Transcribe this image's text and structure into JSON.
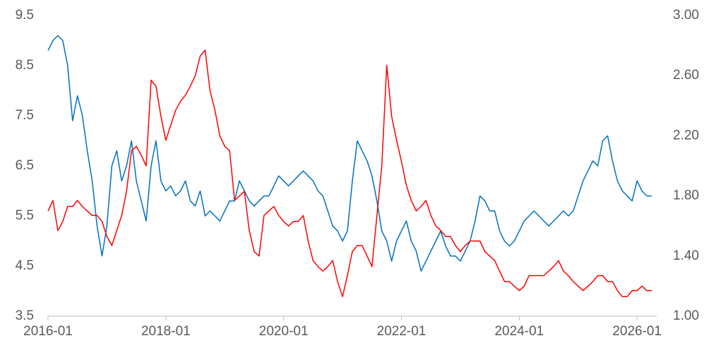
{
  "chart_data": {
    "type": "line",
    "x": [
      "2016-01",
      "2016-02",
      "2016-03",
      "2016-04",
      "2016-05",
      "2016-06",
      "2016-07",
      "2016-08",
      "2016-09",
      "2016-10",
      "2016-11",
      "2016-12",
      "2017-01",
      "2017-02",
      "2017-03",
      "2017-04",
      "2017-05",
      "2017-06",
      "2017-07",
      "2017-08",
      "2017-09",
      "2017-10",
      "2017-11",
      "2017-12",
      "2018-01",
      "2018-02",
      "2018-03",
      "2018-04",
      "2018-05",
      "2018-06",
      "2018-07",
      "2018-08",
      "2018-09",
      "2018-10",
      "2018-11",
      "2018-12",
      "2019-01",
      "2019-02",
      "2019-03",
      "2019-04",
      "2019-05",
      "2019-06",
      "2019-07",
      "2019-08",
      "2019-09",
      "2019-10",
      "2019-11",
      "2019-12",
      "2020-01",
      "2020-02",
      "2020-03",
      "2020-04",
      "2020-05",
      "2020-06",
      "2020-07",
      "2020-08",
      "2020-09",
      "2020-10",
      "2020-11",
      "2020-12",
      "2021-01",
      "2021-02",
      "2021-03",
      "2021-04",
      "2021-05",
      "2021-06",
      "2021-07",
      "2021-08",
      "2021-09",
      "2021-10",
      "2021-11",
      "2021-12",
      "2022-01",
      "2022-02",
      "2022-03",
      "2022-04",
      "2022-05",
      "2022-06",
      "2022-07",
      "2022-08",
      "2022-09",
      "2022-10",
      "2022-11",
      "2022-12",
      "2023-01",
      "2023-02",
      "2023-03",
      "2023-04",
      "2023-05",
      "2023-06",
      "2023-07",
      "2023-08",
      "2023-09",
      "2023-10",
      "2023-11",
      "2023-12",
      "2024-01",
      "2024-02",
      "2024-03",
      "2024-04",
      "2024-05",
      "2024-06",
      "2024-07",
      "2024-08",
      "2024-09",
      "2024-10",
      "2024-11",
      "2024-12",
      "2025-01",
      "2025-02",
      "2025-03",
      "2025-04",
      "2025-05",
      "2025-06",
      "2025-07",
      "2025-08",
      "2025-09",
      "2025-10",
      "2025-11",
      "2025-12",
      "2026-01",
      "2026-02",
      "2026-03",
      "2026-04"
    ],
    "series": [
      {
        "color": "#0070c0",
        "values": [
          8.8,
          9.0,
          9.1,
          9.0,
          8.5,
          7.4,
          7.9,
          7.5,
          6.8,
          6.2,
          5.3,
          4.7,
          5.3,
          6.5,
          6.8,
          6.2,
          6.5,
          7.0,
          6.2,
          5.8,
          5.4,
          6.5,
          7.0,
          6.2,
          6.0,
          6.1,
          5.9,
          6.0,
          6.2,
          5.8,
          5.7,
          6.0,
          5.5,
          5.6,
          5.5,
          5.4,
          5.6,
          5.8,
          5.8,
          6.2,
          6.0,
          5.8,
          5.7,
          5.8,
          5.9,
          5.9,
          6.1,
          6.3,
          6.2,
          6.1,
          6.2,
          6.3,
          6.4,
          6.3,
          6.2,
          6.0,
          5.9,
          5.6,
          5.3,
          5.2,
          5.0,
          5.2,
          6.2,
          7.0,
          6.8,
          6.6,
          6.3,
          5.8,
          5.2,
          5.0,
          4.6,
          5.0,
          5.2,
          5.4,
          5.0,
          4.8,
          4.4,
          4.6,
          4.8,
          5.0,
          5.2,
          4.9,
          4.7,
          4.7,
          4.6,
          4.8,
          5.0,
          5.4,
          5.9,
          5.8,
          5.6,
          5.6,
          5.2,
          5.0,
          4.9,
          5.0,
          5.2,
          5.4,
          5.5,
          5.6,
          5.5,
          5.4,
          5.3,
          5.4,
          5.5,
          5.6,
          5.5,
          5.6,
          5.9,
          6.2,
          6.4,
          6.6,
          6.5,
          7.0,
          7.1,
          6.6,
          6.2,
          6.0,
          5.9,
          5.8,
          6.2,
          6.0,
          5.9,
          5.9
        ]
      },
      {
        "color": "#ff0000",
        "axis": "y2",
        "values": [
          1.7,
          1.77,
          1.57,
          1.63,
          1.73,
          1.73,
          1.77,
          1.73,
          1.7,
          1.67,
          1.67,
          1.63,
          1.53,
          1.47,
          1.57,
          1.67,
          1.83,
          2.1,
          2.13,
          2.07,
          2.0,
          2.57,
          2.53,
          2.33,
          2.17,
          2.27,
          2.37,
          2.43,
          2.47,
          2.53,
          2.6,
          2.73,
          2.77,
          2.5,
          2.37,
          2.2,
          2.13,
          2.1,
          1.77,
          1.8,
          1.83,
          1.57,
          1.43,
          1.4,
          1.67,
          1.7,
          1.73,
          1.67,
          1.63,
          1.6,
          1.63,
          1.63,
          1.67,
          1.5,
          1.37,
          1.33,
          1.3,
          1.33,
          1.37,
          1.23,
          1.13,
          1.27,
          1.43,
          1.47,
          1.47,
          1.4,
          1.33,
          1.67,
          2.0,
          2.67,
          2.33,
          2.17,
          2.03,
          1.87,
          1.77,
          1.7,
          1.73,
          1.77,
          1.67,
          1.6,
          1.57,
          1.53,
          1.53,
          1.47,
          1.43,
          1.47,
          1.5,
          1.5,
          1.5,
          1.43,
          1.4,
          1.37,
          1.3,
          1.23,
          1.23,
          1.2,
          1.17,
          1.2,
          1.27,
          1.27,
          1.27,
          1.27,
          1.3,
          1.33,
          1.37,
          1.3,
          1.27,
          1.23,
          1.2,
          1.17,
          1.2,
          1.23,
          1.27,
          1.27,
          1.23,
          1.23,
          1.17,
          1.13,
          1.13,
          1.17,
          1.17,
          1.2,
          1.17,
          1.17
        ]
      }
    ],
    "xlim": [
      "2016-01",
      "2026-05"
    ],
    "xticks": [
      "2016-01",
      "2018-01",
      "2020-01",
      "2022-01",
      "2024-01",
      "2026-01"
    ],
    "ylim": [
      3.5,
      9.5
    ],
    "yticks": [
      3.5,
      4.5,
      5.5,
      6.5,
      7.5,
      8.5,
      9.5
    ],
    "y2lim": [
      1,
      3
    ],
    "y2ticks": [
      {
        "value": 1,
        "label": "1.00"
      },
      {
        "value": 1.4,
        "label": "1.40"
      },
      {
        "value": 1.8,
        "label": "1.80"
      },
      {
        "value": 2.2,
        "label": "2.20"
      },
      {
        "value": 2.6,
        "label": "2.60"
      },
      {
        "value": 3,
        "label": "3.00"
      }
    ],
    "grid": false
  }
}
